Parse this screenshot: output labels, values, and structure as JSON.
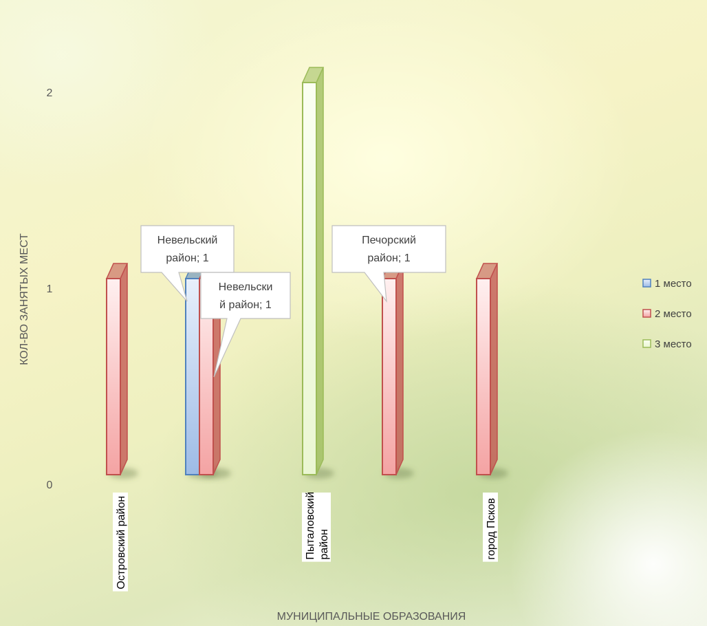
{
  "chart_data": {
    "type": "bar",
    "title": "",
    "xlabel": "МУНИЦИПАЛЬНЫЕ ОБРАЗОВАНИЯ",
    "ylabel": "КОЛ-ВО ЗАНЯТЫХ МЕСТ",
    "ylim": [
      0,
      2
    ],
    "yticks": [
      "0",
      "1",
      "2"
    ],
    "categories": [
      "Островский район",
      "Невельский район",
      "Пыталовский район",
      "Печорский район",
      "город Псков"
    ],
    "category_label_lines": [
      [
        "Островский район"
      ],
      [],
      [
        "Пыталовский",
        "район"
      ],
      [],
      [
        "город Псков"
      ]
    ],
    "series": [
      {
        "name": "1 место",
        "values": [
          0,
          1,
          0,
          0,
          0
        ]
      },
      {
        "name": "2 место",
        "values": [
          1,
          1,
          0,
          1,
          1
        ]
      },
      {
        "name": "3 место",
        "values": [
          0,
          0,
          2,
          0,
          0
        ]
      }
    ],
    "colors": {
      "1 место": {
        "fill_top": "#e8f0fb",
        "fill_bottom": "#9dbbe6",
        "stroke": "#4f81bd"
      },
      "2 место": {
        "fill_top": "#fff0f0",
        "fill_bottom": "#f4a3a3",
        "stroke": "#c0504d"
      },
      "3 место": {
        "fill_top": "#fbfff2",
        "fill_bottom": "#eaf6d2",
        "stroke": "#9bbb59"
      }
    },
    "legend_position": "right",
    "grid": false,
    "data_labels": [
      {
        "series": "1 место",
        "category": "Невельский район",
        "lines": [
          "Невельский",
          "район; 1"
        ]
      },
      {
        "series": "2 место",
        "category": "Невельский район",
        "lines": [
          "Невельски",
          "й район; 1"
        ]
      },
      {
        "series": "2 место",
        "category": "Печорский район",
        "lines": [
          "Печорский",
          "район; 1"
        ]
      }
    ]
  }
}
